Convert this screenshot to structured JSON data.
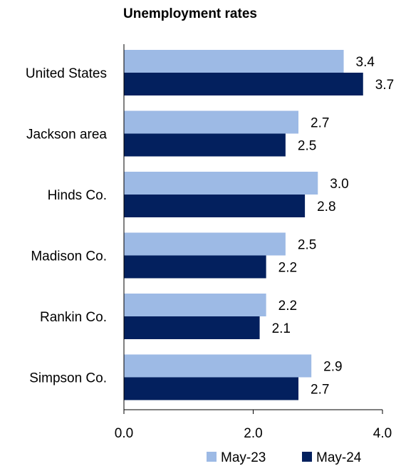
{
  "chart_data": {
    "type": "bar",
    "orientation": "horizontal",
    "title": "Unemployment rates",
    "categories": [
      "United States",
      "Jackson area",
      "Hinds Co.",
      "Madison Co.",
      "Rankin Co.",
      "Simpson Co."
    ],
    "series": [
      {
        "name": "May-23",
        "color": "#9dbae5",
        "values": [
          3.4,
          2.7,
          3.0,
          2.5,
          2.2,
          2.9
        ],
        "labels": [
          "3.4",
          "2.7",
          "3.0",
          "2.5",
          "2.2",
          "2.9"
        ]
      },
      {
        "name": "May-24",
        "color": "#03205e",
        "values": [
          3.7,
          2.5,
          2.8,
          2.2,
          2.1,
          2.7
        ],
        "labels": [
          "3.7",
          "2.5",
          "2.8",
          "2.2",
          "2.1",
          "2.7"
        ]
      }
    ],
    "xlim": [
      0,
      4
    ],
    "ticks": [
      "0.0",
      "2.0",
      "4.0"
    ],
    "tick_values": [
      0,
      2,
      4
    ],
    "grid": false,
    "legend_position": "bottom-right"
  }
}
